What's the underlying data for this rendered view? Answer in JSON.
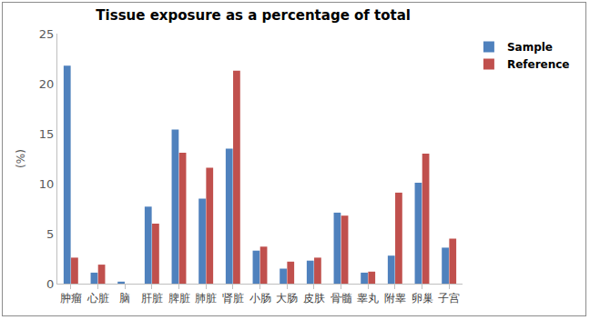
{
  "chart_data": {
    "type": "bar",
    "title": "Tissue exposure as a percentage of total",
    "y_label": "(%)",
    "categories": [
      "肿瘤",
      "心脏",
      "脑",
      "肝脏",
      "脾脏",
      "肺脏",
      "肾脏",
      "小肠",
      "大肠",
      "皮肤",
      "骨髓",
      "睾丸",
      "附睾",
      "卵巢",
      "子宫"
    ],
    "series": [
      {
        "name": "Sample",
        "color": "#4f81bd",
        "values": [
          21.8,
          1.1,
          0.2,
          7.7,
          15.4,
          8.5,
          13.5,
          3.3,
          1.5,
          2.3,
          7.1,
          1.1,
          2.8,
          10.1,
          3.6
        ]
      },
      {
        "name": "Reference",
        "color": "#c0504d",
        "values": [
          2.6,
          1.9,
          0,
          6.0,
          13.1,
          11.6,
          21.3,
          3.7,
          2.2,
          2.6,
          6.8,
          1.2,
          9.1,
          13.0,
          4.5
        ]
      }
    ],
    "ylim": [
      0,
      25
    ],
    "yticks": [
      0,
      5,
      10,
      15,
      20,
      25
    ],
    "grid": false,
    "legend": "top-right"
  }
}
